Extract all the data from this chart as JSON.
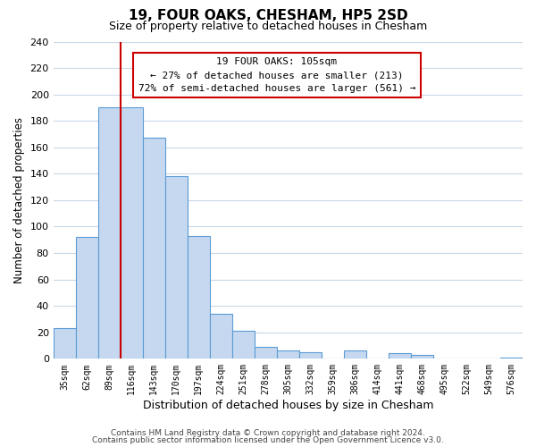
{
  "title": "19, FOUR OAKS, CHESHAM, HP5 2SD",
  "subtitle": "Size of property relative to detached houses in Chesham",
  "xlabel": "Distribution of detached houses by size in Chesham",
  "ylabel": "Number of detached properties",
  "bar_labels": [
    "35sqm",
    "62sqm",
    "89sqm",
    "116sqm",
    "143sqm",
    "170sqm",
    "197sqm",
    "224sqm",
    "251sqm",
    "278sqm",
    "305sqm",
    "332sqm",
    "359sqm",
    "386sqm",
    "414sqm",
    "441sqm",
    "468sqm",
    "495sqm",
    "522sqm",
    "549sqm",
    "576sqm"
  ],
  "bar_values": [
    23,
    92,
    190,
    190,
    167,
    138,
    93,
    34,
    21,
    9,
    6,
    5,
    0,
    6,
    0,
    4,
    3,
    0,
    0,
    0,
    1
  ],
  "bar_color": "#c5d8f0",
  "bar_edge_color": "#5b9bd5",
  "marker_line_color": "#cc0000",
  "annotation_text_line1": "19 FOUR OAKS: 105sqm",
  "annotation_text_line2": "← 27% of detached houses are smaller (213)",
  "annotation_text_line3": "72% of semi-detached houses are larger (561) →",
  "annotation_box_color": "#ffffff",
  "annotation_box_edge_color": "#cc0000",
  "ylim": [
    0,
    240
  ],
  "yticks": [
    0,
    20,
    40,
    60,
    80,
    100,
    120,
    140,
    160,
    180,
    200,
    220,
    240
  ],
  "footer_line1": "Contains HM Land Registry data © Crown copyright and database right 2024.",
  "footer_line2": "Contains public sector information licensed under the Open Government Licence v3.0.",
  "background_color": "#ffffff",
  "grid_color": "#c8d8e8"
}
